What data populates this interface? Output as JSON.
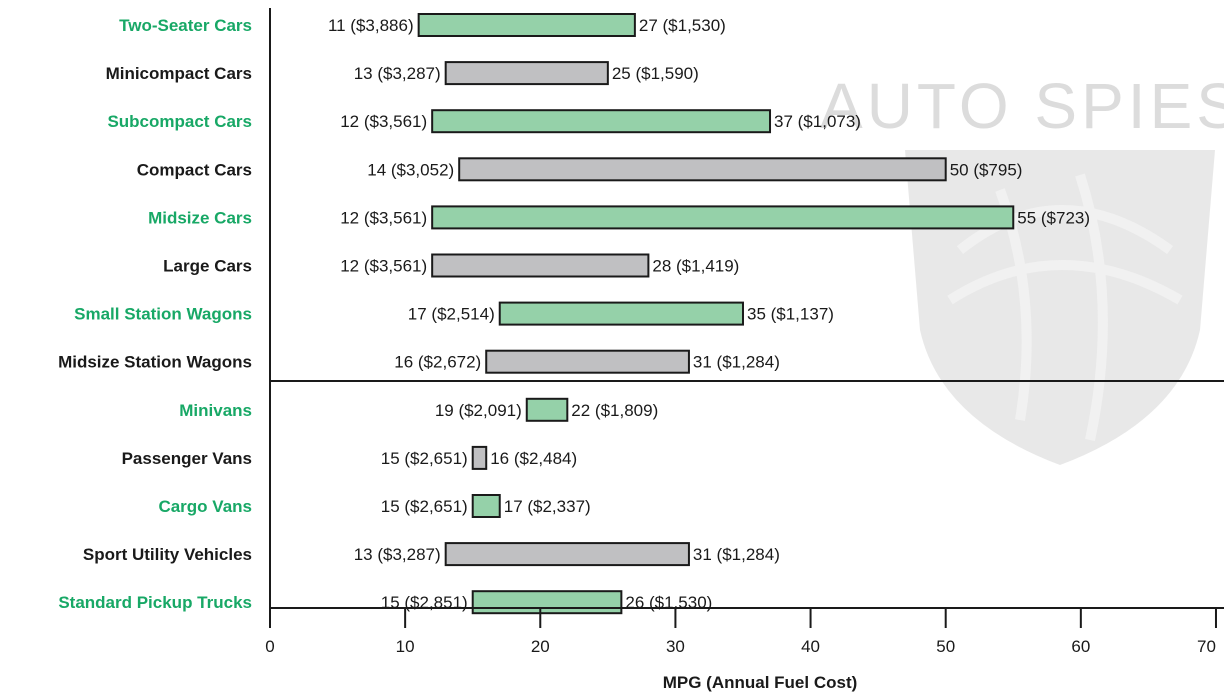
{
  "chart_data": {
    "type": "bar",
    "subtype": "range",
    "categories": [
      "Two-Seater Cars",
      "Minicompact Cars",
      "Subcompact Cars",
      "Compact Cars",
      "Midsize Cars",
      "Large Cars",
      "Small Station Wagons",
      "Midsize Station Wagons",
      "Minivans",
      "Passenger Vans",
      "Cargo Vans",
      "Sport Utility Vehicles",
      "Standard Pickup Trucks"
    ],
    "low_mpg": [
      11,
      13,
      12,
      14,
      12,
      12,
      17,
      16,
      19,
      15,
      15,
      13,
      15
    ],
    "high_mpg": [
      27,
      25,
      37,
      50,
      55,
      28,
      35,
      31,
      22,
      16,
      17,
      31,
      26
    ],
    "low_labels": [
      "11 ($3,886)",
      "13 ($3,287)",
      "12 ($3,561)",
      "14 ($3,052)",
      "12 ($3,561)",
      "12 ($3,561)",
      "17 ($2,514)",
      "16 ($2,672)",
      "19 ($2,091)",
      "15 ($2,651)",
      "15 ($2,651)",
      "13 ($3,287)",
      "15 ($2,851)"
    ],
    "high_labels": [
      "27 ($1,530)",
      "25 ($1,590)",
      "37 ($1,073)",
      "50 ($795)",
      "55 ($723)",
      "28 ($1,419)",
      "35 ($1,137)",
      "31 ($1,284)",
      "22 ($1,809)",
      "16 ($2,484)",
      "17 ($2,337)",
      "31 ($1,284)",
      "26 ($1,530)"
    ],
    "xlabel": "MPG (Annual Fuel Cost)",
    "ylabel": "",
    "xlim": [
      0,
      70
    ],
    "xticks": [
      0,
      10,
      20,
      30,
      40,
      50,
      60,
      70
    ],
    "grid": false,
    "legend": "none",
    "colors": {
      "green_bar": "#95d1a9",
      "gray_bar": "#c0c0c2",
      "green_label": "#18a866",
      "black_label": "#1a1a1a",
      "bar_stroke": "#1a1a1a"
    }
  },
  "watermark": {
    "text": "AUTO SPIES"
  }
}
